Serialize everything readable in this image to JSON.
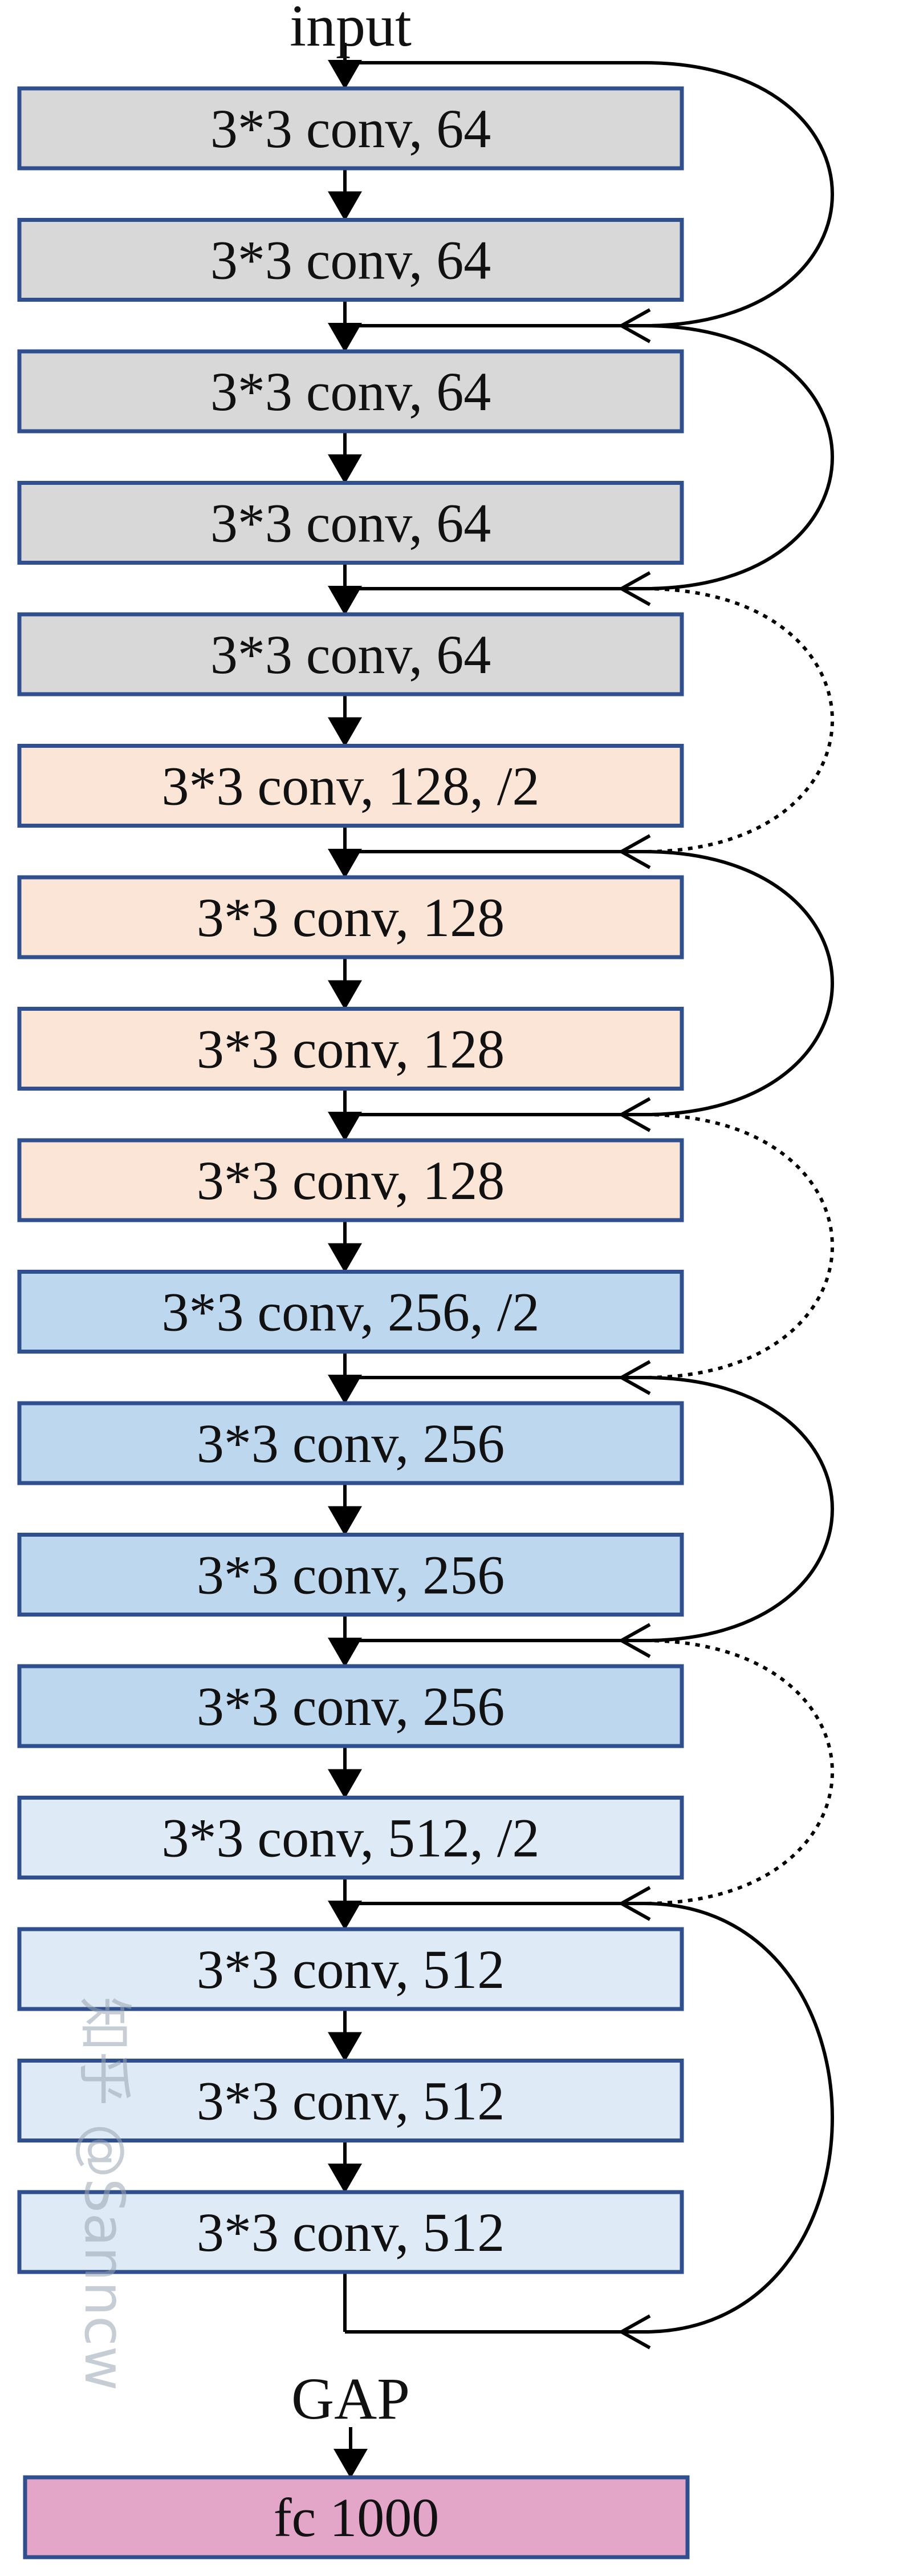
{
  "input_label": "input",
  "gap_label": "GAP",
  "layers": [
    {
      "label": "3*3 conv, 64",
      "color": "#d8d8d8"
    },
    {
      "label": "3*3 conv, 64",
      "color": "#d8d8d8"
    },
    {
      "label": "3*3 conv, 64",
      "color": "#d8d8d8"
    },
    {
      "label": "3*3 conv, 64",
      "color": "#d8d8d8"
    },
    {
      "label": "3*3 conv, 64",
      "color": "#d8d8d8"
    },
    {
      "label": "3*3 conv, 128, /2",
      "color": "#fbe5d6"
    },
    {
      "label": "3*3 conv, 128",
      "color": "#fbe5d6"
    },
    {
      "label": "3*3 conv, 128",
      "color": "#fbe5d6"
    },
    {
      "label": "3*3 conv, 128",
      "color": "#fbe5d6"
    },
    {
      "label": "3*3 conv, 256, /2",
      "color": "#bdd7ee"
    },
    {
      "label": "3*3 conv, 256",
      "color": "#bdd7ee"
    },
    {
      "label": "3*3 conv, 256",
      "color": "#bdd7ee"
    },
    {
      "label": "3*3 conv, 256",
      "color": "#bdd7ee"
    },
    {
      "label": "3*3 conv, 512, /2",
      "color": "#deebf7"
    },
    {
      "label": "3*3 conv, 512",
      "color": "#deebf7"
    },
    {
      "label": "3*3 conv, 512",
      "color": "#deebf7"
    },
    {
      "label": "3*3 conv, 512",
      "color": "#deebf7"
    }
  ],
  "fc_layer": {
    "label": "fc 1000",
    "color": "#e4a6c8"
  },
  "skip_connections": [
    {
      "from_layer": 0,
      "to_layer": 2,
      "style": "solid"
    },
    {
      "from_layer": 2,
      "to_layer": 4,
      "style": "solid"
    },
    {
      "from_layer": 4,
      "to_layer": 6,
      "style": "dotted"
    },
    {
      "from_layer": 6,
      "to_layer": 8,
      "style": "solid"
    },
    {
      "from_layer": 8,
      "to_layer": 10,
      "style": "dotted"
    },
    {
      "from_layer": 10,
      "to_layer": 12,
      "style": "solid"
    },
    {
      "from_layer": 12,
      "to_layer": 14,
      "style": "dotted"
    },
    {
      "from_layer": 14,
      "to_layer": 16,
      "style": "solid"
    }
  ],
  "watermark": "知乎 @Sanncw",
  "colors": {
    "box_border": "#2f4f8f",
    "line": "#000000"
  }
}
